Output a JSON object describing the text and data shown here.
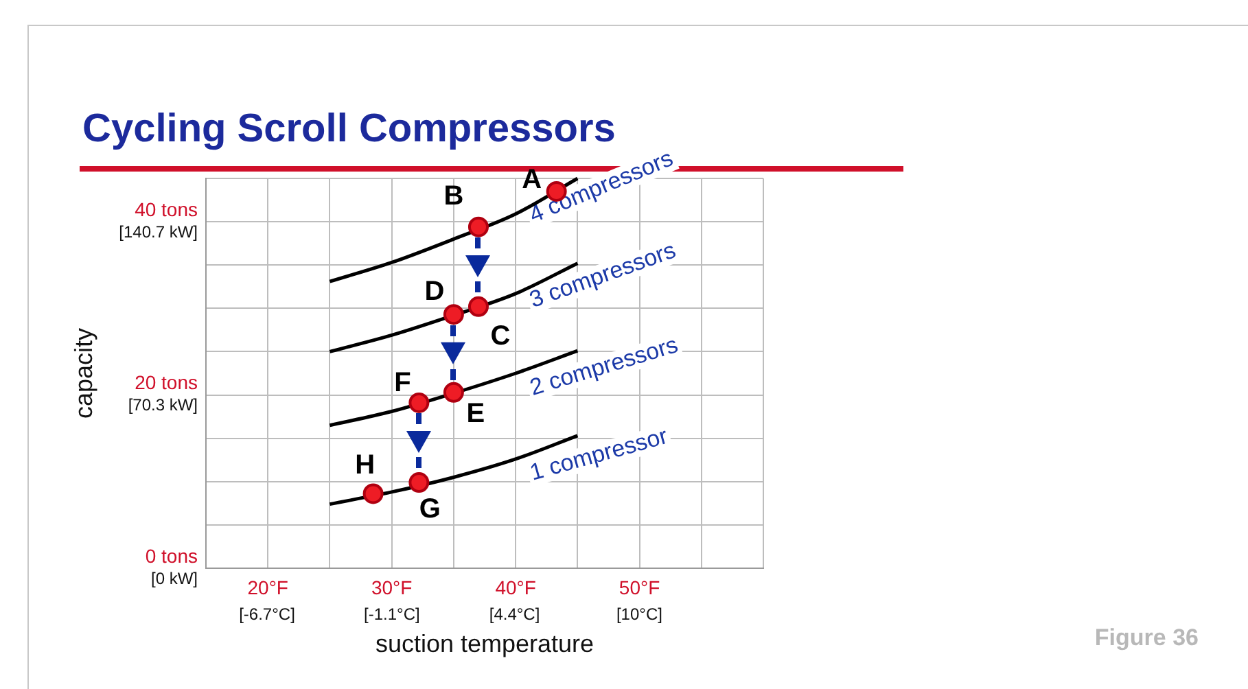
{
  "chart_data": {
    "type": "line",
    "title": "Cycling Scroll Compressors",
    "xlabel": "suction temperature",
    "y2label": "capacity",
    "x": [
      25,
      30,
      35,
      40,
      45
    ],
    "series": [
      {
        "name": "4 compressors",
        "color": "#000000",
        "values": [
          33.1,
          35.3,
          38.0,
          40.9,
          45
        ]
      },
      {
        "name": "3 compressors",
        "color": "#000000",
        "values": [
          25.0,
          26.9,
          29.2,
          31.7,
          35.2
        ]
      },
      {
        "name": "2 compressors",
        "color": "#000000",
        "values": [
          16.5,
          18.1,
          20.2,
          22.5,
          25.1
        ]
      },
      {
        "name": "1 compressor",
        "color": "#000000",
        "values": [
          7.4,
          8.8,
          10.5,
          12.6,
          15.3
        ]
      },
      {
        "type": "scatter",
        "color": "#ee1c25",
        "marker": "circle",
        "x": [
          43.3,
          37.0,
          37.0,
          35.0,
          35.0,
          32.2,
          32.2,
          28.5
        ],
        "values": [
          43.5,
          39.4,
          30.2,
          29.3,
          20.3,
          19.1,
          9.9,
          8.6
        ]
      }
    ],
    "xlim": [
      15,
      60
    ],
    "xticks": [
      {
        "value": 15,
        "label": null
      },
      {
        "value": 20,
        "label": "20°F"
      },
      {
        "value": 25,
        "label": null
      },
      {
        "value": 30,
        "label": "30°F"
      },
      {
        "value": 35,
        "label": null
      },
      {
        "value": 40,
        "label": "40°F"
      },
      {
        "value": 45,
        "label": null
      },
      {
        "value": 50,
        "label": "50°F"
      },
      {
        "value": 55,
        "label": null
      },
      {
        "value": 60,
        "label": null
      }
    ],
    "x2lim": [
      -9.44,
      15.56
    ],
    "x2ticks": [
      {
        "value": -6.7,
        "label": "[-6.7°C]"
      },
      {
        "value": -1.1,
        "label": "[-1.1°C]"
      },
      {
        "value": 4.4,
        "label": "[4.4°C]"
      },
      {
        "value": 10,
        "label": "[10°C]"
      }
    ],
    "ylim": [
      0,
      45
    ],
    "yticks": [
      {
        "value": 0,
        "label": "0 tons"
      },
      {
        "value": 5,
        "label": null
      },
      {
        "value": 10,
        "label": null
      },
      {
        "value": 15,
        "label": null
      },
      {
        "value": 20,
        "label": "20 tons"
      },
      {
        "value": 25,
        "label": null
      },
      {
        "value": 30,
        "label": null
      },
      {
        "value": 35,
        "label": null
      },
      {
        "value": 40,
        "label": "40 tons"
      },
      {
        "value": 45,
        "label": null
      }
    ],
    "y2lim": [
      0,
      158.3
    ],
    "y2ticks": [
      {
        "value": 0,
        "label": "[0 kW]"
      },
      {
        "value": 70.3,
        "label": "[70.3 kW]"
      },
      {
        "value": 140.7,
        "label": "[140.7 kW]"
      }
    ],
    "grid": true,
    "legend": false,
    "marker": "none",
    "line_style": "solid",
    "annotations": [
      {
        "text": "A",
        "x": 43.3,
        "y": 43.5
      },
      {
        "text": "B",
        "x": 37.0,
        "y": 39.4
      },
      {
        "text": "C",
        "x": 37.0,
        "y": 30.2
      },
      {
        "text": "D",
        "x": 35.0,
        "y": 29.3
      },
      {
        "text": "E",
        "x": 35.0,
        "y": 20.3
      },
      {
        "text": "F",
        "x": 32.2,
        "y": 19.1
      },
      {
        "text": "G",
        "x": 32.2,
        "y": 9.9
      },
      {
        "text": "H",
        "x": 28.5,
        "y": 8.6
      },
      "Figure 36"
    ]
  }
}
